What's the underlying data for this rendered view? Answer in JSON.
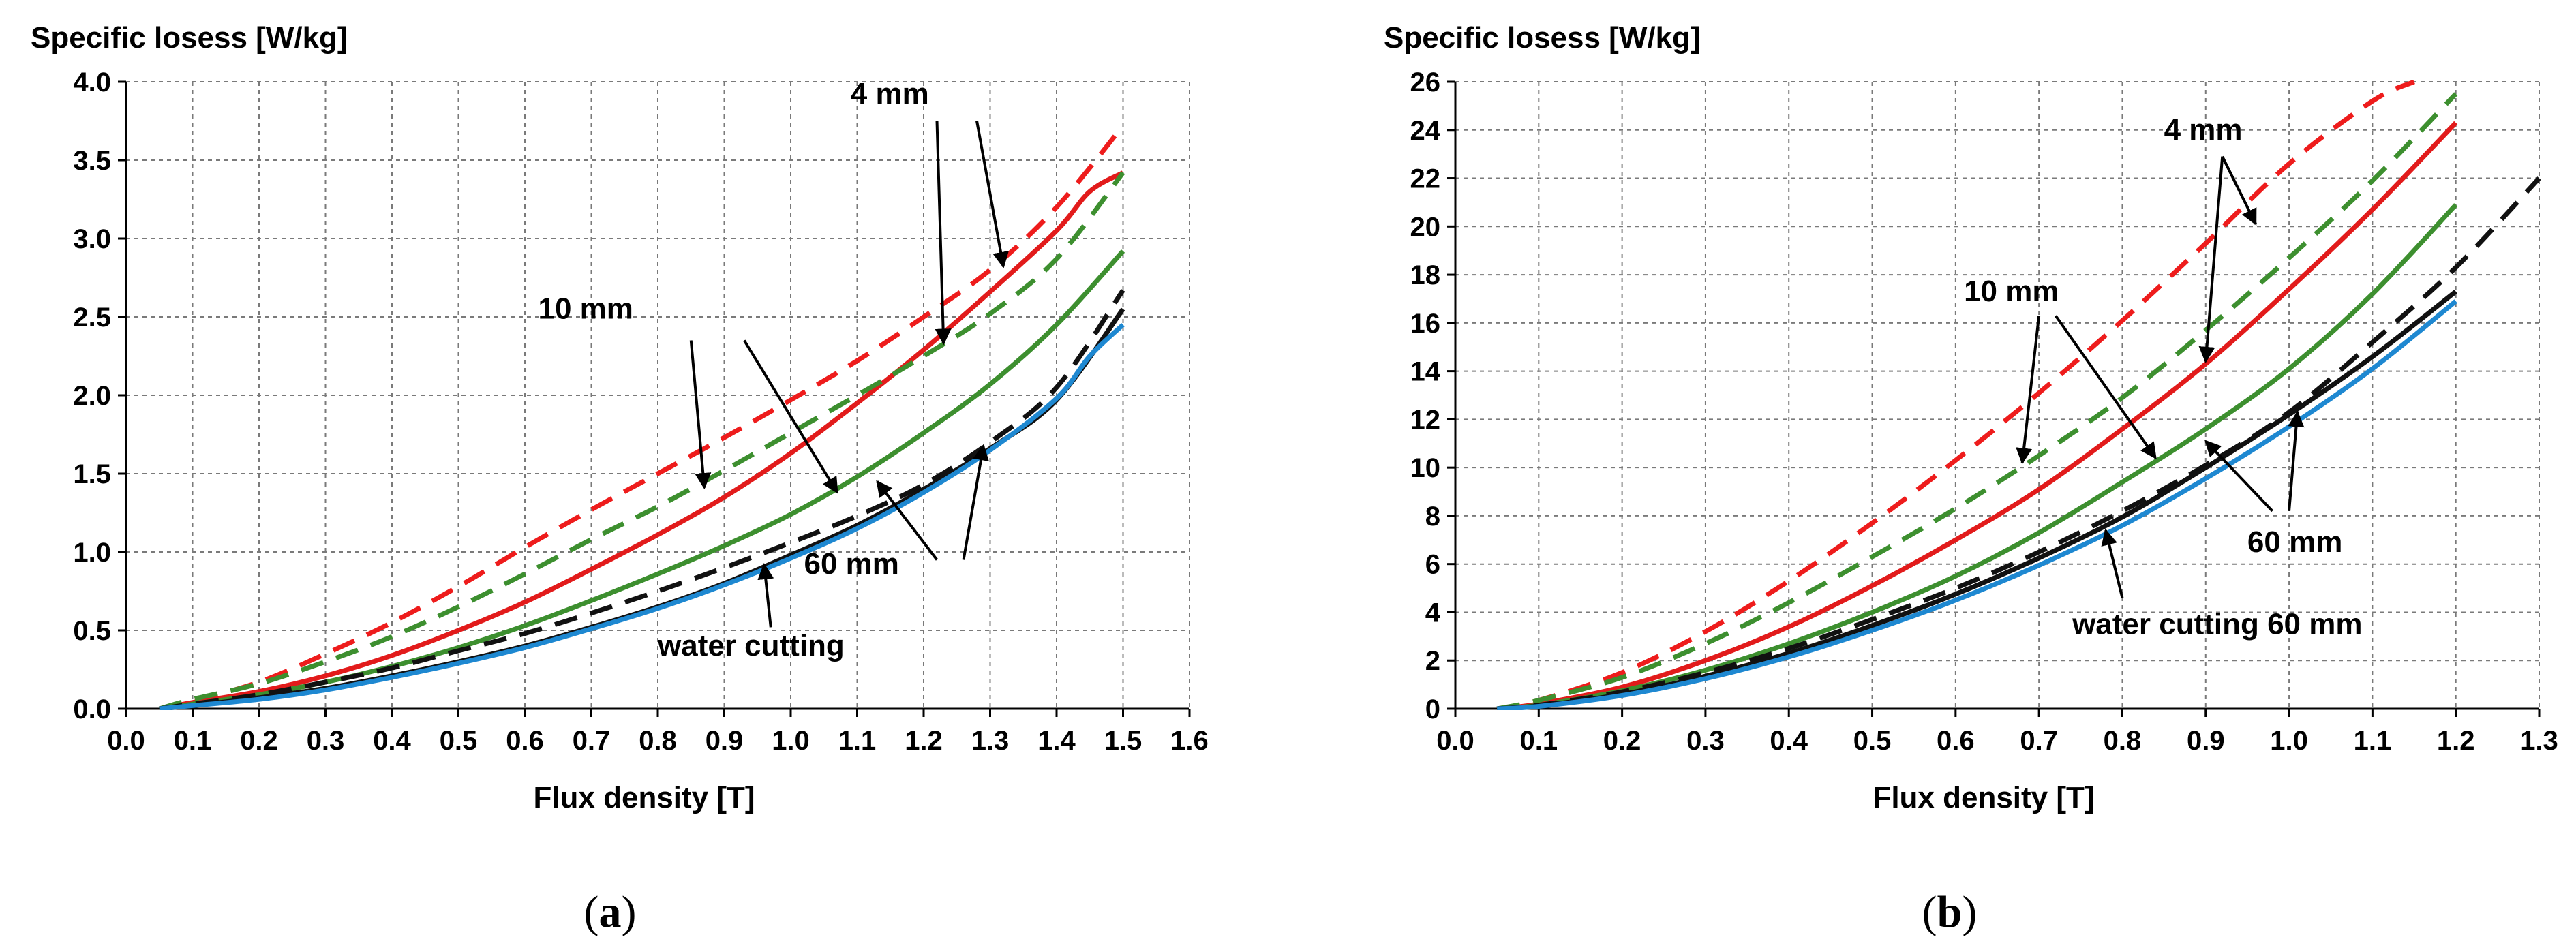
{
  "chart_data": [
    {
      "type": "line",
      "panel": "a",
      "caption_label": "a",
      "title": "Specific losess [W/kg]",
      "xlabel": "Flux density [T]",
      "ylabel": "Specific losess [W/kg]",
      "xlim": [
        0.0,
        1.6
      ],
      "ylim": [
        0.0,
        4.0
      ],
      "xticks": [
        0.0,
        0.1,
        0.2,
        0.3,
        0.4,
        0.5,
        0.6,
        0.7,
        0.8,
        0.9,
        1.0,
        1.1,
        1.2,
        1.3,
        1.4,
        1.5,
        1.6
      ],
      "yticks": [
        0.0,
        0.5,
        1.0,
        1.5,
        2.0,
        2.5,
        3.0,
        3.5,
        4.0
      ],
      "xtick_decimals": 1,
      "ytick_decimals": 1,
      "grid": true,
      "series": [
        {
          "name": "4 mm (dashed red)",
          "color": "#ee1c1c",
          "dashed": true,
          "x": [
            0.05,
            0.1,
            0.2,
            0.3,
            0.4,
            0.5,
            0.6,
            0.7,
            0.8,
            0.9,
            1.0,
            1.1,
            1.2,
            1.3,
            1.4,
            1.5
          ],
          "y": [
            0.0,
            0.05,
            0.17,
            0.35,
            0.55,
            0.78,
            1.03,
            1.27,
            1.5,
            1.73,
            1.97,
            2.22,
            2.5,
            2.8,
            3.2,
            3.72
          ]
        },
        {
          "name": "4 mm (solid red)",
          "color": "#e21b1b",
          "dashed": false,
          "x": [
            0.05,
            0.1,
            0.2,
            0.3,
            0.4,
            0.5,
            0.6,
            0.7,
            0.8,
            0.9,
            1.0,
            1.1,
            1.2,
            1.3,
            1.4,
            1.45,
            1.5
          ],
          "y": [
            0.0,
            0.04,
            0.11,
            0.21,
            0.34,
            0.5,
            0.68,
            0.89,
            1.11,
            1.35,
            1.63,
            1.95,
            2.29,
            2.66,
            3.05,
            3.3,
            3.42
          ]
        },
        {
          "name": "10 mm (dashed green)",
          "color": "#3d8f2f",
          "dashed": true,
          "x": [
            0.05,
            0.1,
            0.2,
            0.3,
            0.4,
            0.5,
            0.6,
            0.7,
            0.8,
            0.9,
            1.0,
            1.1,
            1.2,
            1.3,
            1.4,
            1.5
          ],
          "y": [
            0.0,
            0.06,
            0.16,
            0.3,
            0.46,
            0.65,
            0.86,
            1.08,
            1.29,
            1.52,
            1.76,
            2.0,
            2.25,
            2.52,
            2.87,
            3.42
          ]
        },
        {
          "name": "10 mm (solid green)",
          "color": "#3d8f2f",
          "dashed": false,
          "x": [
            0.05,
            0.1,
            0.2,
            0.3,
            0.4,
            0.5,
            0.6,
            0.7,
            0.8,
            0.9,
            1.0,
            1.1,
            1.2,
            1.3,
            1.4,
            1.5
          ],
          "y": [
            0.0,
            0.03,
            0.09,
            0.17,
            0.27,
            0.39,
            0.53,
            0.69,
            0.86,
            1.04,
            1.24,
            1.48,
            1.76,
            2.07,
            2.45,
            2.92
          ]
        },
        {
          "name": "60 mm (dashed black)",
          "color": "#111111",
          "dashed": true,
          "x": [
            0.05,
            0.1,
            0.2,
            0.3,
            0.4,
            0.5,
            0.6,
            0.7,
            0.8,
            0.9,
            1.0,
            1.1,
            1.2,
            1.3,
            1.4,
            1.5
          ],
          "y": [
            0.0,
            0.03,
            0.09,
            0.17,
            0.26,
            0.37,
            0.48,
            0.61,
            0.75,
            0.9,
            1.06,
            1.23,
            1.43,
            1.7,
            2.05,
            2.67
          ]
        },
        {
          "name": "60 mm (solid black)",
          "color": "#111111",
          "dashed": false,
          "x": [
            0.05,
            0.1,
            0.2,
            0.3,
            0.4,
            0.5,
            0.6,
            0.7,
            0.8,
            0.9,
            1.0,
            1.1,
            1.2,
            1.3,
            1.4,
            1.5
          ],
          "y": [
            0.0,
            0.02,
            0.07,
            0.13,
            0.21,
            0.3,
            0.4,
            0.52,
            0.65,
            0.8,
            0.98,
            1.17,
            1.4,
            1.66,
            1.97,
            2.55
          ]
        },
        {
          "name": "water cutting",
          "color": "#1e88d1",
          "dashed": false,
          "x": [
            0.05,
            0.1,
            0.2,
            0.3,
            0.4,
            0.5,
            0.6,
            0.7,
            0.8,
            0.9,
            1.0,
            1.1,
            1.2,
            1.3,
            1.4,
            1.45,
            1.5
          ],
          "y": [
            0.0,
            0.02,
            0.06,
            0.12,
            0.2,
            0.29,
            0.39,
            0.51,
            0.64,
            0.79,
            0.96,
            1.15,
            1.38,
            1.65,
            1.98,
            2.25,
            2.45
          ]
        }
      ],
      "annotations": [
        {
          "text": "4 mm",
          "tx": 1.09,
          "ty": 3.86,
          "arrows": [
            [
              1.28,
              3.75,
              1.32,
              2.82
            ],
            [
              1.22,
              3.75,
              1.23,
              2.33
            ]
          ]
        },
        {
          "text": "10 mm",
          "tx": 0.62,
          "ty": 2.49,
          "arrows": [
            [
              0.85,
              2.35,
              0.87,
              1.41
            ],
            [
              0.93,
              2.35,
              1.07,
              1.38
            ]
          ]
        },
        {
          "text": "60 mm",
          "tx": 1.02,
          "ty": 0.86,
          "arrows": [
            [
              1.22,
              0.95,
              1.13,
              1.45
            ],
            [
              1.26,
              0.95,
              1.29,
              1.68
            ]
          ]
        },
        {
          "text": "water cutting",
          "tx": 0.8,
          "ty": 0.34,
          "arrows": [
            [
              0.97,
              0.52,
              0.96,
              0.92
            ]
          ]
        }
      ]
    },
    {
      "type": "line",
      "panel": "b",
      "caption_label": "b",
      "title": "Specific losess [W/kg]",
      "xlabel": "Flux density [T]",
      "ylabel": "Specific losess [W/kg]",
      "xlim": [
        0.0,
        1.3
      ],
      "ylim": [
        0,
        26
      ],
      "xticks": [
        0.0,
        0.1,
        0.2,
        0.3,
        0.4,
        0.5,
        0.6,
        0.7,
        0.8,
        0.9,
        1.0,
        1.1,
        1.2,
        1.3
      ],
      "yticks": [
        0,
        2,
        4,
        6,
        8,
        10,
        12,
        14,
        16,
        18,
        20,
        22,
        24,
        26
      ],
      "xtick_decimals": 1,
      "ytick_decimals": 0,
      "grid": true,
      "series": [
        {
          "name": "4 mm (dashed red)",
          "color": "#ee1c1c",
          "dashed": true,
          "x": [
            0.05,
            0.1,
            0.2,
            0.3,
            0.4,
            0.5,
            0.6,
            0.7,
            0.8,
            0.9,
            1.0,
            1.1,
            1.15
          ],
          "y": [
            0.0,
            0.35,
            1.5,
            3.2,
            5.3,
            7.7,
            10.3,
            13.1,
            16.1,
            19.3,
            22.6,
            25.2,
            26.0
          ]
        },
        {
          "name": "4 mm (solid red)",
          "color": "#e21b1b",
          "dashed": false,
          "x": [
            0.05,
            0.1,
            0.2,
            0.3,
            0.4,
            0.5,
            0.6,
            0.7,
            0.8,
            0.9,
            1.0,
            1.1,
            1.2
          ],
          "y": [
            0.0,
            0.2,
            0.9,
            2.0,
            3.4,
            5.1,
            7.0,
            9.1,
            11.6,
            14.3,
            17.4,
            20.7,
            24.3
          ]
        },
        {
          "name": "10 mm (dashed green)",
          "color": "#3d8f2f",
          "dashed": true,
          "x": [
            0.05,
            0.1,
            0.2,
            0.3,
            0.4,
            0.5,
            0.6,
            0.7,
            0.8,
            0.9,
            1.0,
            1.1,
            1.2
          ],
          "y": [
            0.0,
            0.35,
            1.3,
            2.7,
            4.4,
            6.3,
            8.3,
            10.5,
            12.9,
            15.7,
            18.7,
            21.9,
            25.5
          ]
        },
        {
          "name": "10 mm (solid green)",
          "color": "#3d8f2f",
          "dashed": false,
          "x": [
            0.05,
            0.1,
            0.2,
            0.3,
            0.4,
            0.5,
            0.6,
            0.7,
            0.8,
            0.9,
            1.0,
            1.1,
            1.2
          ],
          "y": [
            0.0,
            0.15,
            0.75,
            1.6,
            2.7,
            4.0,
            5.5,
            7.3,
            9.4,
            11.6,
            14.1,
            17.2,
            20.9
          ]
        },
        {
          "name": "60 mm (dashed black)",
          "color": "#111111",
          "dashed": true,
          "x": [
            0.05,
            0.1,
            0.2,
            0.3,
            0.4,
            0.5,
            0.6,
            0.7,
            0.8,
            0.9,
            1.0,
            1.1,
            1.2,
            1.3
          ],
          "y": [
            0.0,
            0.15,
            0.7,
            1.5,
            2.5,
            3.7,
            5.0,
            6.5,
            8.2,
            10.1,
            12.3,
            15.2,
            18.3,
            22.0
          ]
        },
        {
          "name": "60 mm (solid black)",
          "color": "#111111",
          "dashed": false,
          "x": [
            0.05,
            0.1,
            0.2,
            0.3,
            0.4,
            0.5,
            0.6,
            0.7,
            0.8,
            0.9,
            1.0,
            1.1,
            1.2
          ],
          "y": [
            0.0,
            0.12,
            0.6,
            1.35,
            2.3,
            3.45,
            4.75,
            6.25,
            7.95,
            10.0,
            12.2,
            14.6,
            17.3
          ]
        },
        {
          "name": "water cutting 60 mm",
          "color": "#1e88d1",
          "dashed": false,
          "x": [
            0.05,
            0.1,
            0.2,
            0.3,
            0.4,
            0.5,
            0.6,
            0.7,
            0.8,
            0.9,
            1.0,
            1.1,
            1.2
          ],
          "y": [
            0.0,
            0.1,
            0.55,
            1.25,
            2.15,
            3.25,
            4.5,
            5.95,
            7.6,
            9.55,
            11.7,
            14.1,
            16.9
          ]
        }
      ],
      "annotations": [
        {
          "text": "4 mm",
          "tx": 0.85,
          "ty": 23.6,
          "arrows": [
            [
              0.92,
              22.9,
              0.96,
              20.1
            ],
            [
              0.92,
              22.9,
              0.9,
              14.4
            ]
          ]
        },
        {
          "text": "10 mm",
          "tx": 0.61,
          "ty": 16.9,
          "arrows": [
            [
              0.7,
              16.3,
              0.68,
              10.2
            ],
            [
              0.72,
              16.3,
              0.84,
              10.4
            ]
          ]
        },
        {
          "text": "60 mm",
          "tx": 0.95,
          "ty": 6.5,
          "arrows": [
            [
              0.98,
              8.2,
              0.9,
              11.1
            ],
            [
              1.0,
              8.2,
              1.01,
              12.3
            ]
          ]
        },
        {
          "text": "water cutting 60 mm",
          "tx": 0.74,
          "ty": 3.1,
          "arrows": [
            [
              0.8,
              4.6,
              0.78,
              7.4
            ]
          ]
        }
      ]
    }
  ]
}
